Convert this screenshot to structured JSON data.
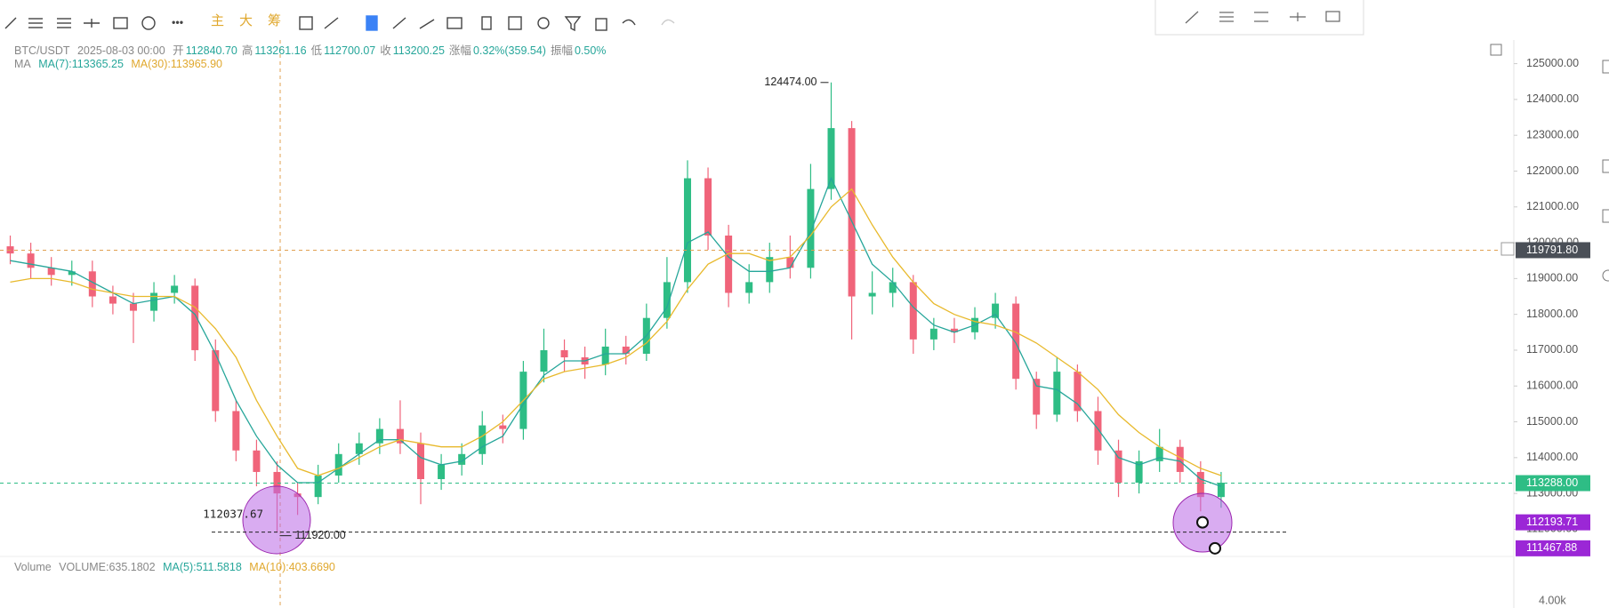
{
  "toolbar": {
    "buttons": [
      "主",
      "大",
      "筹"
    ]
  },
  "header": {
    "symbol": "BTC/USDT",
    "date": "2025-08-03 00:00",
    "fields": [
      {
        "label": "开",
        "value": "112840.70"
      },
      {
        "label": "高",
        "value": "113261.16"
      },
      {
        "label": "低",
        "value": "112700.07"
      },
      {
        "label": "收",
        "value": "113200.25"
      },
      {
        "label": "涨幅",
        "value": "0.32%(359.54)"
      },
      {
        "label": "振幅",
        "value": "0.50%"
      }
    ]
  },
  "volume": {
    "label": "Volume",
    "value": "VOLUME:635.1802",
    "ma5": "MA(5):511.5818",
    "ma10": "MA(10):403.6690",
    "axis_label": "4.00k"
  },
  "chart_data": {
    "type": "candlestick",
    "legend_title": "MA",
    "up_color": "#2ebd85",
    "down_color": "#f0647a",
    "open": [
      119900,
      119700,
      119300,
      119100,
      119200,
      118500,
      118300,
      118100,
      118600,
      118800,
      117000,
      115300,
      114200,
      113600,
      113000,
      112900,
      113500,
      114100,
      114400,
      114800,
      114400,
      113400,
      113800,
      114100,
      114900,
      114800,
      116400,
      117000,
      116800,
      116600,
      117100,
      116900,
      117900,
      118900,
      121800,
      120200,
      118600,
      118900,
      119600,
      119300,
      121500,
      123200,
      118500,
      118600,
      118900,
      117300,
      117600,
      117500,
      117900,
      118300,
      116200,
      115200,
      116400,
      115300,
      114200,
      113300,
      113900,
      114300,
      113600,
      112900
    ],
    "high": [
      120200,
      120000,
      119600,
      119500,
      119500,
      118800,
      118600,
      118900,
      119100,
      119000,
      117300,
      115600,
      114500,
      113900,
      113300,
      113800,
      114400,
      114700,
      115100,
      115600,
      114700,
      114100,
      114400,
      115300,
      115200,
      116700,
      117600,
      117300,
      117100,
      117600,
      117400,
      118300,
      119600,
      122300,
      122100,
      120500,
      119400,
      120000,
      120200,
      122200,
      124474,
      123400,
      119200,
      119300,
      119100,
      117900,
      117900,
      118200,
      118600,
      118500,
      116400,
      116800,
      116600,
      115700,
      114500,
      114200,
      114800,
      114500,
      113900,
      113600
    ],
    "low": [
      119400,
      119000,
      118800,
      118800,
      118200,
      118000,
      117200,
      117800,
      118300,
      116700,
      115000,
      113900,
      113200,
      111920,
      112400,
      112700,
      113300,
      113800,
      114100,
      114100,
      112700,
      113100,
      113500,
      113800,
      114400,
      114500,
      116100,
      116400,
      116200,
      116300,
      116600,
      116700,
      117600,
      118600,
      119800,
      118200,
      118300,
      118600,
      119000,
      119000,
      121200,
      117300,
      118000,
      118200,
      116900,
      117000,
      117200,
      117300,
      117600,
      115900,
      114800,
      115000,
      115000,
      113800,
      112900,
      113000,
      113600,
      113300,
      112500,
      112600
    ],
    "close": [
      119700,
      119300,
      119100,
      119200,
      118500,
      118300,
      118100,
      118600,
      118800,
      117000,
      115300,
      114200,
      113600,
      113000,
      112900,
      113500,
      114100,
      114400,
      114800,
      114400,
      113400,
      113800,
      114100,
      114900,
      114800,
      116400,
      117000,
      116800,
      116600,
      117100,
      116900,
      117900,
      118900,
      121800,
      120200,
      118600,
      118900,
      119600,
      119300,
      121500,
      123200,
      118500,
      118600,
      118900,
      117300,
      117600,
      117500,
      117900,
      118300,
      116200,
      115200,
      116400,
      115300,
      114200,
      113300,
      113900,
      114300,
      113600,
      112900,
      113300
    ],
    "ma": [
      {
        "name": "MA(7):113365.25",
        "color": "#26a69a",
        "values": [
          119500,
          119400,
          119300,
          119200,
          118900,
          118600,
          118300,
          118400,
          118500,
          118000,
          116900,
          115600,
          114600,
          113800,
          113300,
          113300,
          113700,
          114100,
          114500,
          114500,
          114000,
          113800,
          113900,
          114300,
          114600,
          115500,
          116300,
          116700,
          116700,
          116900,
          116900,
          117400,
          118200,
          120000,
          120300,
          119600,
          119200,
          119200,
          119300,
          120300,
          121800,
          120600,
          119400,
          118900,
          118200,
          117700,
          117500,
          117700,
          118000,
          117200,
          116000,
          115900,
          115500,
          114800,
          114000,
          113800,
          114000,
          113900,
          113400,
          113200
        ]
      },
      {
        "name": "MA(30):113965.90",
        "color": "#e8b92c",
        "values": [
          118900,
          119000,
          119000,
          118900,
          118700,
          118600,
          118500,
          118500,
          118500,
          118200,
          117600,
          116800,
          115600,
          114600,
          113700,
          113500,
          113700,
          114000,
          114300,
          114500,
          114400,
          114300,
          114300,
          114600,
          115000,
          115600,
          116200,
          116400,
          116500,
          116600,
          116800,
          117200,
          117800,
          118700,
          119400,
          119700,
          119700,
          119500,
          119600,
          120200,
          121000,
          121500,
          120500,
          119600,
          118900,
          118300,
          118000,
          117800,
          117700,
          117500,
          117200,
          116800,
          116400,
          115900,
          115200,
          114700,
          114300,
          114000,
          113700,
          113500
        ]
      }
    ],
    "ylim": [
      111390,
      125660
    ],
    "yticks": [
      {
        "value": 112000,
        "label": "112000.00"
      },
      {
        "value": 113000,
        "label": "113000.00"
      },
      {
        "value": 114000,
        "label": "114000.00"
      },
      {
        "value": 115000,
        "label": "115000.00"
      },
      {
        "value": 116000,
        "label": "116000.00"
      },
      {
        "value": 117000,
        "label": "117000.00"
      },
      {
        "value": 118000,
        "label": "118000.00"
      },
      {
        "value": 119000,
        "label": "119000.00"
      },
      {
        "value": 120000,
        "label": "120000.00"
      },
      {
        "value": 121000,
        "label": "121000.00"
      },
      {
        "value": 122000,
        "label": "122000.00"
      },
      {
        "value": 123000,
        "label": "123000.00"
      },
      {
        "value": 124000,
        "label": "124000.00"
      },
      {
        "value": 125000,
        "label": "125000.00"
      }
    ],
    "price_lines": [
      {
        "value": 119791.8,
        "label": "119791.80",
        "color": "#e0a050",
        "box": "#4a4f57"
      },
      {
        "value": 113288,
        "label": "113288.00",
        "color": "#2ebd85",
        "box": "#2ebd85"
      }
    ],
    "point_labels": [
      {
        "value": 112193.71,
        "label": "112193.71"
      },
      {
        "value": 111467.88,
        "label": "111467.88"
      }
    ],
    "max_annotation": {
      "value": 124474,
      "label": "124474.00"
    },
    "min_annotation": {
      "value": 111920,
      "label": "111920.00"
    },
    "cursor_annotation": {
      "value": 112037.67,
      "label": "112037.67"
    }
  }
}
